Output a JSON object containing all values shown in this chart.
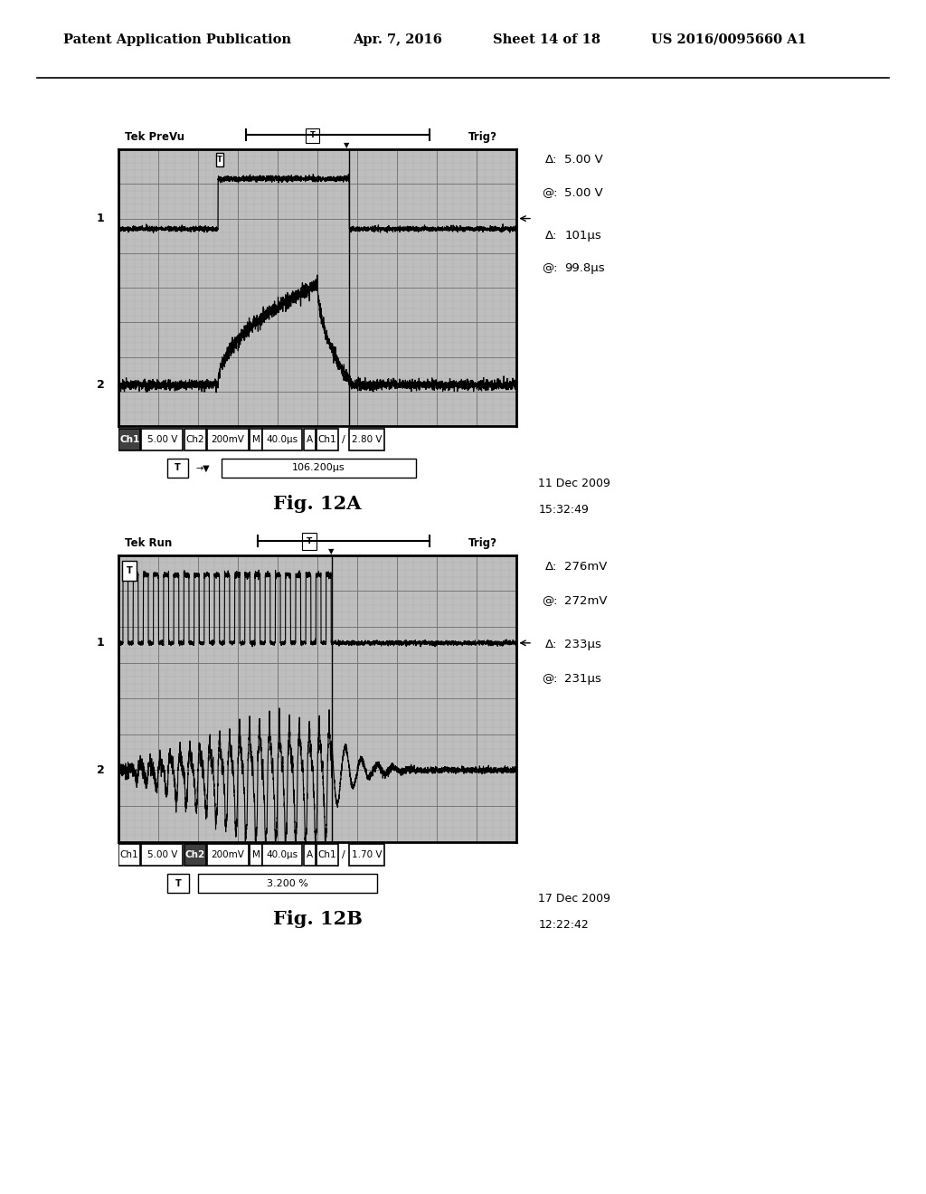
{
  "header_text": "Patent Application Publication",
  "header_date": "Apr. 7, 2016",
  "header_sheet": "Sheet 14 of 18",
  "header_patent": "US 2016/0095660 A1",
  "fig_a_label": "Fig. 12A",
  "fig_b_label": "Fig. 12B",
  "fig_a_date": "11 Dec 2009",
  "fig_a_time": "15:32:49",
  "fig_b_date": "17 Dec 2009",
  "fig_b_time": "12:22:42",
  "fig_a_tek": "Tek PreVu",
  "fig_b_tek": "Tek Run",
  "fig_a_trig": "Trig?",
  "fig_b_trig": "Trig?",
  "fig_a_cursor": "106.200μs",
  "fig_b_cursor": "3.200 %",
  "fig_a_delta_V": "5.00 V",
  "fig_a_at_V": "5.00 V",
  "fig_a_delta_t": "101μs",
  "fig_a_at_t": "99.8μs",
  "fig_b_delta_V": "276mV",
  "fig_b_at_V": "272mV",
  "fig_b_delta_t": "233μs",
  "fig_b_at_t": "231μs"
}
